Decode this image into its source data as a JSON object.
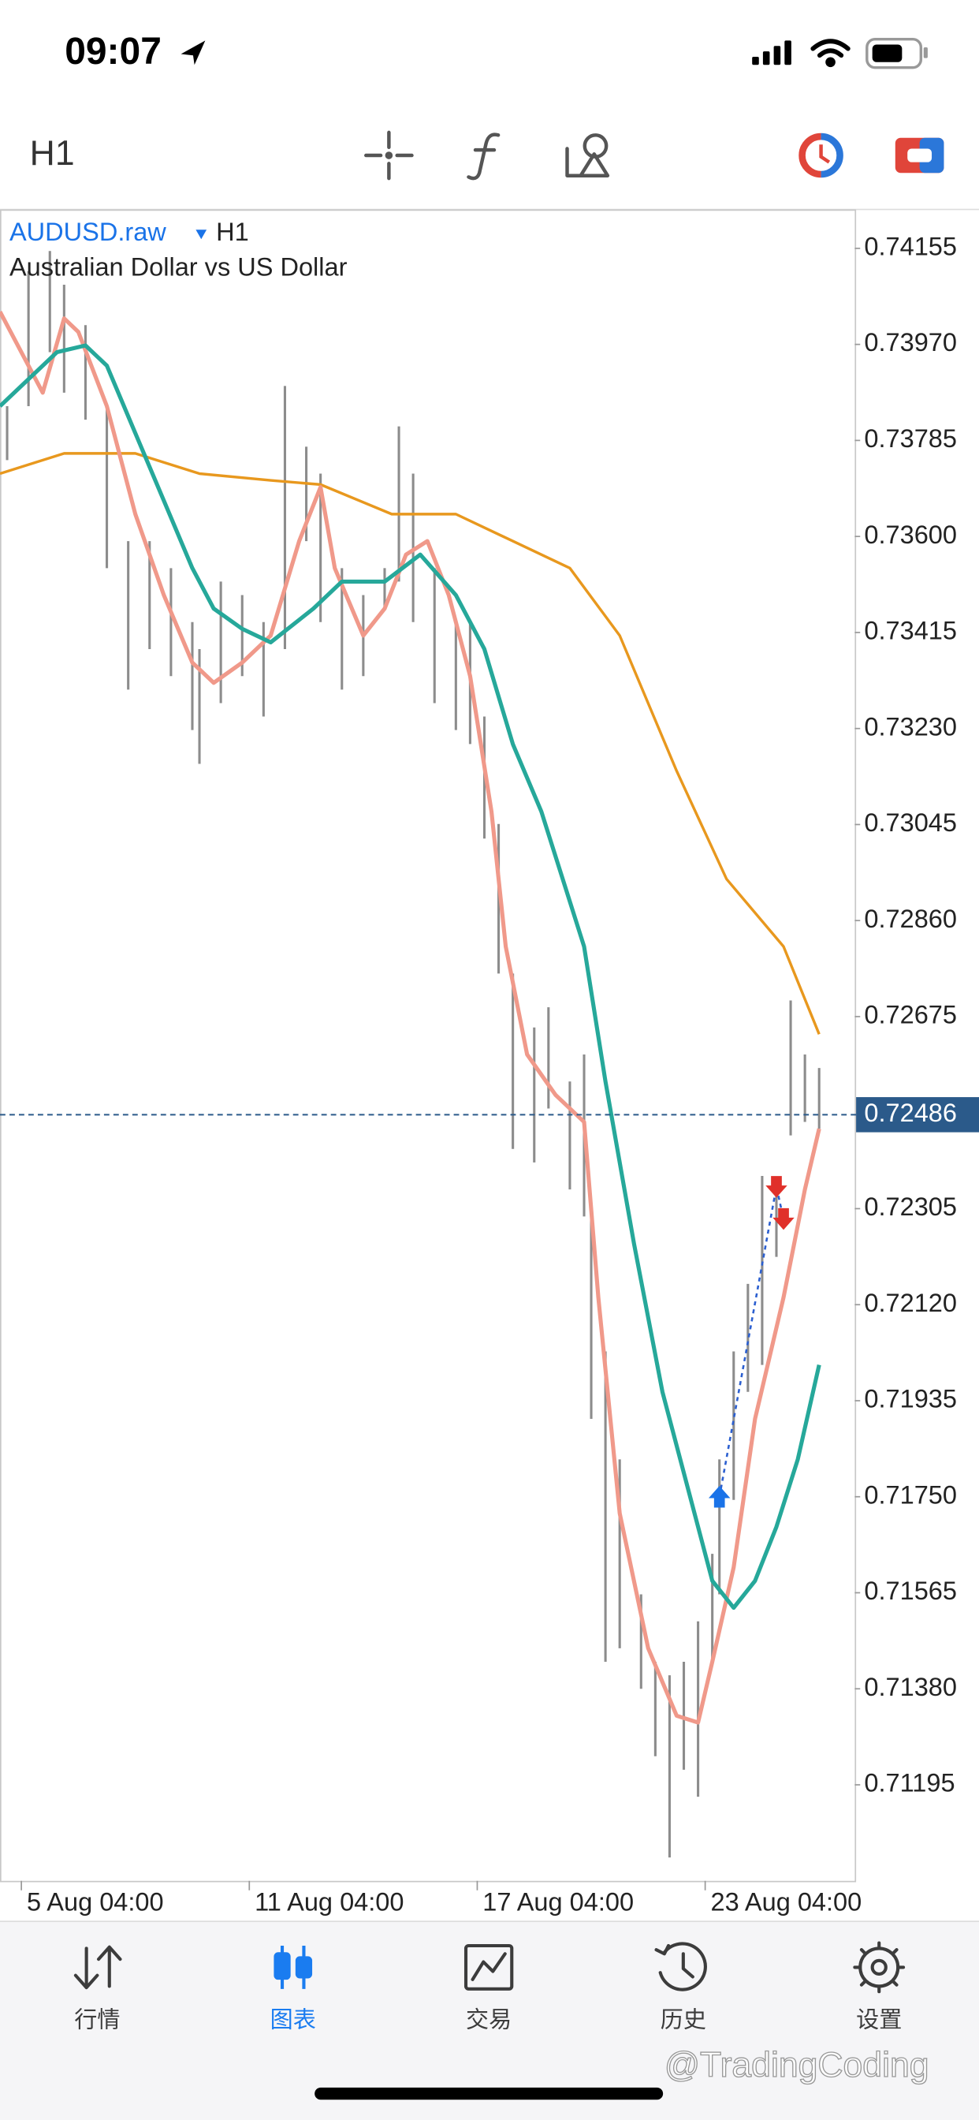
{
  "status_bar": {
    "time": "09:07"
  },
  "toolbar": {
    "timeframe": "H1"
  },
  "chart_data": {
    "type": "ohlc",
    "symbol": "AUDUSD.raw",
    "timeframe": "H1",
    "description": "Australian Dollar vs US Dollar",
    "xlim": [
      0,
      120
    ],
    "xticks": [
      {
        "value": 3,
        "label": "5 Aug 04:00"
      },
      {
        "value": 35,
        "label": "11 Aug 04:00"
      },
      {
        "value": 67,
        "label": "17 Aug 04:00"
      },
      {
        "value": 99,
        "label": "23 Aug 04:00"
      }
    ],
    "ylim": [
      0.7101,
      0.7423
    ],
    "yticks": [
      0.74155,
      {
        "value": 0.7397,
        "label": "0.73970"
      },
      0.73785,
      {
        "value": 0.736,
        "label": "0.73600"
      },
      0.73415,
      {
        "value": 0.7323,
        "label": "0.73230"
      },
      0.73045,
      {
        "value": 0.7286,
        "label": "0.72860"
      },
      0.72675,
      0.72305,
      {
        "value": 0.7212,
        "label": "0.72120"
      },
      0.71935,
      {
        "value": 0.7175,
        "label": "0.71750"
      },
      0.71565,
      {
        "value": 0.7138,
        "label": "0.71380"
      },
      0.71195
    ],
    "current_price": 0.72486,
    "current_price_color": "#2b5a8a",
    "bars": {
      "color": "#8c8c8c",
      "x": [
        1,
        4,
        7,
        9,
        12,
        15,
        18,
        21,
        24,
        27,
        28,
        31,
        34,
        37,
        40,
        43,
        45,
        48,
        51,
        54,
        56,
        58,
        61,
        64,
        66,
        68,
        70,
        72,
        75,
        77,
        80,
        82,
        83,
        85,
        87,
        90,
        92,
        94,
        96,
        98,
        100,
        101,
        103,
        105,
        107,
        109,
        111,
        113,
        115
      ],
      "high": [
        0.73851,
        0.74111,
        0.7415,
        0.74085,
        0.74007,
        0.73851,
        0.73591,
        0.73591,
        0.73539,
        0.73435,
        0.73383,
        0.73513,
        0.73487,
        0.73435,
        0.7389,
        0.73773,
        0.73721,
        0.73539,
        0.73487,
        0.73539,
        0.73812,
        0.73721,
        0.73539,
        0.73435,
        0.73435,
        0.73253,
        0.73046,
        0.72758,
        0.72654,
        0.72693,
        0.7255,
        0.72602,
        0.7229,
        0.7203,
        0.71822,
        0.71562,
        0.71432,
        0.71406,
        0.71432,
        0.7151,
        0.7164,
        0.71822,
        0.7203,
        0.7216,
        0.72368,
        0.72342,
        0.72706,
        0.72602,
        0.72576
      ],
      "low": [
        0.73747,
        0.73851,
        0.73955,
        0.73877,
        0.73825,
        0.73539,
        0.73305,
        0.73383,
        0.73331,
        0.73227,
        0.73162,
        0.73279,
        0.73331,
        0.73253,
        0.73383,
        0.73591,
        0.73435,
        0.73305,
        0.73331,
        0.73461,
        0.73513,
        0.73435,
        0.73279,
        0.73227,
        0.732,
        0.73018,
        0.72758,
        0.7242,
        0.72394,
        0.72498,
        0.72342,
        0.7229,
        0.719,
        0.71432,
        0.71458,
        0.7138,
        0.7125,
        0.71055,
        0.71224,
        0.71172,
        0.71432,
        0.71562,
        0.71744,
        0.71952,
        0.72004,
        0.72212,
        0.72446,
        0.72472,
        0.72459
      ]
    },
    "series": [
      {
        "color": "#e8981e",
        "x": [
          0,
          9,
          19,
          28,
          38,
          45,
          55,
          64,
          72,
          80,
          87,
          95,
          102,
          110,
          115
        ],
        "values": [
          0.73721,
          0.7376,
          0.7376,
          0.73721,
          0.73708,
          0.737,
          0.73643,
          0.73643,
          0.73591,
          0.73539,
          0.73409,
          0.73148,
          0.7294,
          0.7281,
          0.72641
        ]
      },
      {
        "color": "#f0998a",
        "x": [
          0,
          4,
          6,
          9,
          11,
          15,
          19,
          23,
          27,
          30,
          34,
          38,
          42,
          45,
          47,
          51,
          54,
          57,
          60,
          63,
          66,
          69,
          71,
          74,
          78,
          82,
          84,
          87,
          91,
          95,
          98,
          100,
          103,
          106,
          110,
          113,
          115
        ],
        "values": [
          0.74033,
          0.73929,
          0.73877,
          0.7402,
          0.73994,
          0.73851,
          0.73643,
          0.73487,
          0.73357,
          0.73318,
          0.73357,
          0.73409,
          0.73591,
          0.73695,
          0.73539,
          0.73409,
          0.73461,
          0.73565,
          0.73591,
          0.73487,
          0.73331,
          0.7307,
          0.7281,
          0.72602,
          0.72524,
          0.72472,
          0.72134,
          0.71718,
          0.71458,
          0.71328,
          0.71315,
          0.71432,
          0.71614,
          0.719,
          0.72134,
          0.72342,
          0.72459
        ]
      },
      {
        "color": "#26a89a",
        "x": [
          0,
          4,
          8,
          12,
          15,
          19,
          23,
          27,
          30,
          34,
          38,
          44,
          48,
          54,
          59,
          64,
          68,
          72,
          76,
          82,
          85,
          89,
          93,
          97,
          100,
          103,
          106,
          109,
          112,
          115
        ],
        "values": [
          0.73851,
          0.73903,
          0.73955,
          0.73968,
          0.73929,
          0.73799,
          0.73669,
          0.73539,
          0.73461,
          0.73422,
          0.73396,
          0.73461,
          0.73513,
          0.73513,
          0.73565,
          0.73487,
          0.73383,
          0.732,
          0.7307,
          0.7281,
          0.7255,
          0.72238,
          0.71952,
          0.71744,
          0.71588,
          0.71536,
          0.71588,
          0.71692,
          0.71822,
          0.72004
        ]
      }
    ],
    "trades": [
      {
        "x": 101,
        "price": 0.7175,
        "direction": "up",
        "color": "#1a73e8"
      },
      {
        "x": 109,
        "price": 0.72347,
        "direction": "down",
        "color": "#e0302a"
      },
      {
        "x": 110,
        "price": 0.72285,
        "direction": "down",
        "color": "#e0302a"
      }
    ]
  },
  "tab_bar": {
    "active_color": "#1a7cf0",
    "inactive_color": "#3c3c3c",
    "items": [
      {
        "label": "行情",
        "active": false
      },
      {
        "label": "图表",
        "active": true
      },
      {
        "label": "交易",
        "active": false
      },
      {
        "label": "历史",
        "active": false
      },
      {
        "label": "设置",
        "active": false
      }
    ]
  },
  "watermark": "@TradingCoding"
}
